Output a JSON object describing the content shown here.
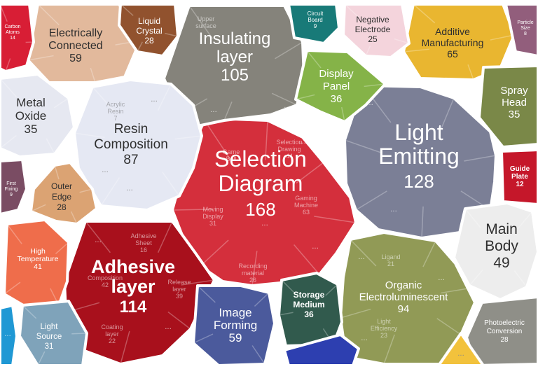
{
  "chart_data": {
    "type": "voronoi-treemap",
    "title": "",
    "more_marker": "...",
    "cells": [
      {
        "name": "Selection Diagram",
        "value": 168,
        "color": "#d42f3c",
        "children": [
          "Game Ball",
          "Moving Display",
          "Selection Drawing",
          "Gaming Machine",
          "Recording material"
        ],
        "child_values": [
          "",
          "31",
          "44",
          "63",
          "26"
        ]
      },
      {
        "name": "Light Emitting",
        "value": 128,
        "color": "#7b7f96",
        "children": [],
        "child_values": []
      },
      {
        "name": "Adhesive layer",
        "value": 114,
        "color": "#a8101c",
        "children": [
          "Adhesive Sheet",
          "Composition",
          "Coating layer",
          "Release layer"
        ],
        "child_values": [
          "16",
          "42",
          "22",
          "39"
        ]
      },
      {
        "name": "Insulating layer",
        "value": 105,
        "color": "#85837b",
        "children": [
          "Upper surface"
        ],
        "child_values": [
          ""
        ]
      },
      {
        "name": "Organic Electroluminescent",
        "value": 94,
        "color": "#919a56",
        "children": [
          "Ligand",
          "Light Efficiency"
        ],
        "child_values": [
          "21",
          "23"
        ]
      },
      {
        "name": "Resin Composition",
        "value": 87,
        "color": "#e5e8f3",
        "children": [
          "Acrylic Resin"
        ],
        "child_values": [
          "7"
        ]
      },
      {
        "name": "Additive Manufacturing",
        "value": 65,
        "color": "#e9b630",
        "children": [],
        "child_values": []
      },
      {
        "name": "Electrically Connected",
        "value": 59,
        "color": "#e2b99c",
        "children": [],
        "child_values": []
      },
      {
        "name": "Image Forming",
        "value": 59,
        "color": "#4b5a9c",
        "children": [],
        "child_values": []
      },
      {
        "name": "Main Body",
        "value": 49,
        "color": "#ededed",
        "children": [],
        "child_values": []
      },
      {
        "name": "High Temperature",
        "value": 41,
        "color": "#ef6d4b",
        "children": [],
        "child_values": []
      },
      {
        "name": "Display Panel",
        "value": 36,
        "color": "#85b348",
        "children": [],
        "child_values": []
      },
      {
        "name": "Storage Medium",
        "value": 36,
        "color": "#315a4d",
        "children": [],
        "child_values": []
      },
      {
        "name": "Metal Oxide",
        "value": 35,
        "color": "#e6e8f1",
        "children": [],
        "child_values": []
      },
      {
        "name": "Spray Head",
        "value": 35,
        "color": "#7a8848",
        "children": [],
        "child_values": []
      },
      {
        "name": "Light Source",
        "value": 31,
        "color": "#7fa3ba",
        "children": [],
        "child_values": []
      },
      {
        "name": "Outer Edge",
        "value": 28,
        "color": "#dba373",
        "children": [],
        "child_values": []
      },
      {
        "name": "Liquid Crystal",
        "value": 28,
        "color": "#91522e",
        "children": [],
        "child_values": []
      },
      {
        "name": "Photoelectric Conversion",
        "value": 28,
        "color": "#8f8f88",
        "children": [],
        "child_values": []
      },
      {
        "name": "Negative Electrode",
        "value": 25,
        "color": "#f4d4dc",
        "children": [],
        "child_values": []
      },
      {
        "name": "Carbon Atoms",
        "value": 14,
        "color": "#d81e35",
        "children": [],
        "child_values": []
      },
      {
        "name": "Guide Plate",
        "value": 12,
        "color": "#c5172a",
        "children": [],
        "child_values": []
      },
      {
        "name": "Circuit Board",
        "value": 9,
        "color": "#187a78",
        "children": [],
        "child_values": []
      },
      {
        "name": "Particle Size",
        "value": 8,
        "color": "#925e7c",
        "children": [],
        "child_values": []
      },
      {
        "name": "First Fixing",
        "value": 9,
        "color": "#7a4c63",
        "children": [],
        "child_values": []
      },
      {
        "name": "",
        "value": null,
        "color": "#1f98d4",
        "children": [],
        "child_values": []
      },
      {
        "name": "",
        "value": null,
        "color": "#2d3fb0",
        "children": [],
        "child_values": []
      },
      {
        "name": "",
        "value": null,
        "color": "#f2c23c",
        "children": [],
        "child_values": []
      }
    ]
  }
}
